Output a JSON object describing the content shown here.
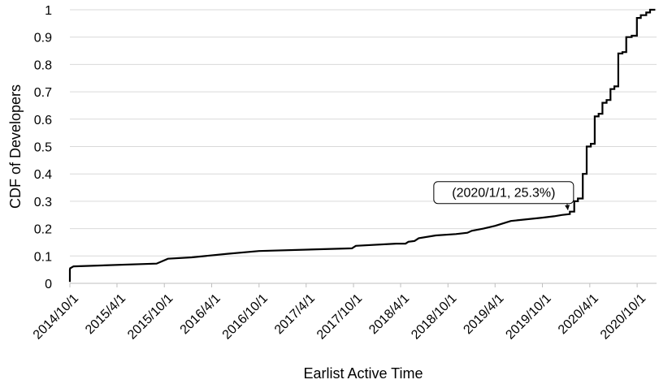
{
  "chart_data": {
    "type": "line",
    "title": "",
    "xlabel": "Earlist Active Time",
    "ylabel": "CDF of Developers",
    "x_ticks": [
      "2014/10/1",
      "2015/4/1",
      "2015/10/1",
      "2016/4/1",
      "2016/10/1",
      "2017/4/1",
      "2017/10/1",
      "2018/4/1",
      "2018/10/1",
      "2019/4/1",
      "2019/10/1",
      "2020/4/1",
      "2020/10/1"
    ],
    "y_ticks": [
      "0",
      "0.1",
      "0.2",
      "0.3",
      "0.4",
      "0.5",
      "0.6",
      "0.7",
      "0.8",
      "0.9",
      "1"
    ],
    "xlim": [
      "2014/10/1",
      "2020/12/15"
    ],
    "ylim": [
      0,
      1
    ],
    "grid": "horizontal",
    "legend": "none",
    "line_color": "#000000",
    "grid_color": "#d9d9d9",
    "series": [
      {
        "x": [
          "2014/10/1",
          "2014/10/1",
          "2014/10/2",
          "2014/10/15",
          "2015/9/1",
          "2015/10/15",
          "2016/1/15",
          "2016/6/1",
          "2016/10/1",
          "2017/9/25",
          "2017/10/10",
          "2018/3/15",
          "2018/4/20",
          "2018/5/1",
          "2018/5/25",
          "2018/6/10",
          "2018/8/15",
          "2018/11/1",
          "2018/12/15",
          "2019/1/1",
          "2019/2/15",
          "2019/4/1",
          "2019/6/1",
          "2019/10/1",
          "2019/11/15",
          "2019/12/15",
          "2020/1/15",
          "2020/1/15",
          "2020/2/1",
          "2020/2/1",
          "2020/2/15",
          "2020/2/15",
          "2020/3/5",
          "2020/3/5",
          "2020/3/20",
          "2020/3/20",
          "2020/4/5",
          "2020/4/5",
          "2020/4/20",
          "2020/4/20",
          "2020/5/5",
          "2020/5/5",
          "2020/5/20",
          "2020/5/20",
          "2020/6/5",
          "2020/6/5",
          "2020/6/20",
          "2020/6/20",
          "2020/7/5",
          "2020/7/5",
          "2020/7/20",
          "2020/7/20",
          "2020/8/5",
          "2020/8/5",
          "2020/8/20",
          "2020/8/20",
          "2020/9/10",
          "2020/9/10",
          "2020/9/30",
          "2020/9/30",
          "2020/10/15",
          "2020/10/15",
          "2020/11/5",
          "2020/11/5",
          "2020/11/20",
          "2020/11/20",
          "2020/12/10"
        ],
        "y": [
          0.005,
          0.05,
          0.055,
          0.062,
          0.072,
          0.09,
          0.095,
          0.108,
          0.118,
          0.128,
          0.137,
          0.145,
          0.145,
          0.152,
          0.155,
          0.165,
          0.175,
          0.18,
          0.185,
          0.192,
          0.2,
          0.21,
          0.228,
          0.24,
          0.245,
          0.25,
          0.253,
          0.262,
          0.262,
          0.3,
          0.3,
          0.31,
          0.31,
          0.4,
          0.4,
          0.5,
          0.5,
          0.51,
          0.51,
          0.61,
          0.61,
          0.62,
          0.62,
          0.66,
          0.66,
          0.67,
          0.67,
          0.71,
          0.71,
          0.72,
          0.72,
          0.84,
          0.84,
          0.845,
          0.845,
          0.9,
          0.9,
          0.905,
          0.905,
          0.97,
          0.97,
          0.98,
          0.98,
          0.99,
          0.99,
          1.0,
          1.0
        ]
      }
    ],
    "annotation": {
      "text": "(2020/1/1, 25.3%)",
      "x": "2020/1/1",
      "y": 0.253
    }
  }
}
